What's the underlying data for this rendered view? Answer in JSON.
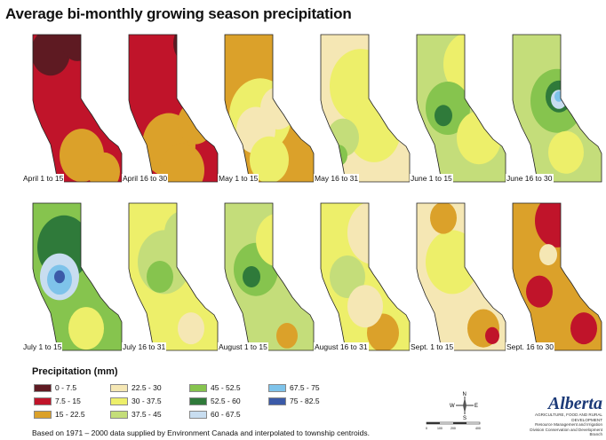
{
  "title": "Average bi-monthly growing season precipitation",
  "colors": {
    "c0": "#5e1a22",
    "c1": "#c0142a",
    "c2": "#dba12a",
    "c3": "#f5e7b4",
    "c4": "#edef6a",
    "c5": "#c4dd7a",
    "c6": "#86c44e",
    "c7": "#2f7a3a",
    "c8": "#7ec3ea",
    "c9": "#3b5aa8",
    "c10": "#c8ddf0"
  },
  "maps": [
    {
      "label": "April 1 to 15",
      "base": "c1",
      "patches": [
        [
          "c0",
          0.2,
          0.12,
          0.22
        ],
        [
          "c0",
          0.5,
          0.05,
          0.18
        ],
        [
          "c2",
          0.55,
          0.82,
          0.25
        ],
        [
          "c2",
          0.8,
          0.93,
          0.18
        ]
      ]
    },
    {
      "label": "April 16 to 30",
      "base": "c1",
      "patches": [
        [
          "c0",
          0.7,
          0.06,
          0.2
        ],
        [
          "c2",
          0.45,
          0.75,
          0.3
        ],
        [
          "c2",
          0.75,
          0.6,
          0.2
        ],
        [
          "c2",
          0.6,
          0.92,
          0.25
        ]
      ]
    },
    {
      "label": "May 1 to 15",
      "base": "c2",
      "patches": [
        [
          "c4",
          0.4,
          0.55,
          0.35
        ],
        [
          "c3",
          0.35,
          0.65,
          0.22
        ],
        [
          "c3",
          0.6,
          0.5,
          0.2
        ],
        [
          "c4",
          0.5,
          0.85,
          0.22
        ]
      ]
    },
    {
      "label": "May 16 to 31",
      "base": "c3",
      "patches": [
        [
          "c4",
          0.45,
          0.35,
          0.35
        ],
        [
          "c4",
          0.6,
          0.65,
          0.3
        ],
        [
          "c5",
          0.25,
          0.7,
          0.18
        ],
        [
          "c6",
          0.2,
          0.82,
          0.1
        ]
      ]
    },
    {
      "label": "June 1 to 15",
      "base": "c5",
      "patches": [
        [
          "c4",
          0.6,
          0.2,
          0.3
        ],
        [
          "c6",
          0.35,
          0.5,
          0.25
        ],
        [
          "c7",
          0.3,
          0.55,
          0.1
        ],
        [
          "c4",
          0.7,
          0.7,
          0.25
        ]
      ]
    },
    {
      "label": "June 16 to 30",
      "base": "c5",
      "patches": [
        [
          "c6",
          0.5,
          0.45,
          0.3
        ],
        [
          "c7",
          0.52,
          0.42,
          0.15
        ],
        [
          "c10",
          0.52,
          0.44,
          0.09
        ],
        [
          "c8",
          0.52,
          0.42,
          0.05
        ],
        [
          "c4",
          0.6,
          0.8,
          0.2
        ]
      ]
    },
    {
      "label": "July 1 to 15",
      "base": "c6",
      "patches": [
        [
          "c7",
          0.35,
          0.3,
          0.3
        ],
        [
          "c10",
          0.3,
          0.5,
          0.22
        ],
        [
          "c8",
          0.3,
          0.52,
          0.14
        ],
        [
          "c9",
          0.3,
          0.5,
          0.06
        ],
        [
          "c4",
          0.6,
          0.85,
          0.2
        ]
      ]
    },
    {
      "label": "July 16 to 31",
      "base": "c4",
      "patches": [
        [
          "c5",
          0.4,
          0.4,
          0.3
        ],
        [
          "c6",
          0.35,
          0.5,
          0.15
        ],
        [
          "c5",
          0.6,
          0.2,
          0.2
        ],
        [
          "c3",
          0.7,
          0.85,
          0.15
        ]
      ]
    },
    {
      "label": "August 1 to 15",
      "base": "c5",
      "patches": [
        [
          "c6",
          0.35,
          0.45,
          0.25
        ],
        [
          "c7",
          0.3,
          0.5,
          0.1
        ],
        [
          "c4",
          0.6,
          0.25,
          0.25
        ],
        [
          "c2",
          0.7,
          0.9,
          0.12
        ]
      ]
    },
    {
      "label": "August 16 to 31",
      "base": "c4",
      "patches": [
        [
          "c3",
          0.6,
          0.2,
          0.3
        ],
        [
          "c5",
          0.3,
          0.5,
          0.2
        ],
        [
          "c2",
          0.7,
          0.88,
          0.18
        ],
        [
          "c3",
          0.5,
          0.7,
          0.2
        ]
      ]
    },
    {
      "label": "Sept. 1 to 15",
      "base": "c3",
      "patches": [
        [
          "c4",
          0.4,
          0.4,
          0.3
        ],
        [
          "c2",
          0.3,
          0.1,
          0.15
        ],
        [
          "c2",
          0.75,
          0.85,
          0.18
        ],
        [
          "c1",
          0.85,
          0.9,
          0.08
        ]
      ]
    },
    {
      "label": "Sept. 16 to 30",
      "base": "c2",
      "patches": [
        [
          "c1",
          0.5,
          0.12,
          0.25
        ],
        [
          "c1",
          0.3,
          0.6,
          0.15
        ],
        [
          "c1",
          0.8,
          0.85,
          0.15
        ],
        [
          "c3",
          0.4,
          0.35,
          0.1
        ]
      ]
    }
  ],
  "legend": {
    "title": "Precipitation (mm)",
    "items": [
      {
        "label": "0 - 7.5",
        "color": "c0"
      },
      {
        "label": "7.5 - 15",
        "color": "c1"
      },
      {
        "label": "15 - 22.5",
        "color": "c2"
      },
      {
        "label": "22.5 - 30",
        "color": "c3"
      },
      {
        "label": "30 - 37.5",
        "color": "c4"
      },
      {
        "label": "37.5 - 45",
        "color": "c5"
      },
      {
        "label": "45 - 52.5",
        "color": "c6"
      },
      {
        "label": "52.5 - 60",
        "color": "c7"
      },
      {
        "label": "60 - 67.5",
        "color": "c10"
      },
      {
        "label": "67.5 - 75",
        "color": "c8"
      },
      {
        "label": "75 - 82.5",
        "color": "c9"
      }
    ]
  },
  "footer": "Based on 1971 – 2000 data supplied by Environment Canada and interpolated to township centroids.",
  "compass": {
    "n": "N",
    "s": "S",
    "e": "E",
    "w": "W"
  },
  "scale_ticks": [
    "0",
    "100",
    "200",
    "400"
  ],
  "logo": {
    "word": "Alberta",
    "dept": "AGRICULTURE, FOOD AND RURAL DEVELOPMENT",
    "division": "Resource Management and Irrigation Division Conservation and Development Branch"
  }
}
